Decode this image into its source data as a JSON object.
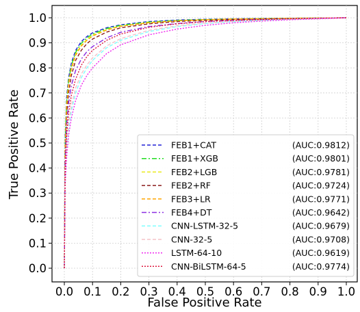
{
  "chart_data": {
    "type": "line",
    "title": "",
    "xlabel": "False Positive Rate",
    "ylabel": "True Positive Rate",
    "xlim": [
      0.0,
      1.0
    ],
    "ylim": [
      0.0,
      1.0
    ],
    "xticks": [
      "0.0",
      "0.1",
      "0.2",
      "0.3",
      "0.4",
      "0.5",
      "0.6",
      "0.7",
      "0.8",
      "0.9",
      "1.0"
    ],
    "yticks": [
      "0.0",
      "0.1",
      "0.2",
      "0.3",
      "0.4",
      "0.5",
      "0.6",
      "0.7",
      "0.8",
      "0.9",
      "1.0"
    ],
    "grid": true,
    "legend_position": "bottom-right",
    "series": [
      {
        "name": "FEB1+CAT",
        "auc": "(AUC:0.9812)",
        "color": "#1f1fd6",
        "dash": "dash",
        "points": [
          [
            0,
            0
          ],
          [
            0.003,
            0.52
          ],
          [
            0.008,
            0.68
          ],
          [
            0.015,
            0.76
          ],
          [
            0.025,
            0.82
          ],
          [
            0.04,
            0.87
          ],
          [
            0.06,
            0.905
          ],
          [
            0.08,
            0.925
          ],
          [
            0.1,
            0.94
          ],
          [
            0.15,
            0.96
          ],
          [
            0.2,
            0.972
          ],
          [
            0.3,
            0.985
          ],
          [
            0.4,
            0.991
          ],
          [
            0.5,
            0.994
          ],
          [
            0.6,
            0.996
          ],
          [
            0.7,
            0.997
          ],
          [
            0.8,
            0.998
          ],
          [
            0.9,
            0.999
          ],
          [
            1.0,
            1.0
          ]
        ]
      },
      {
        "name": "FEB1+XGB",
        "auc": "(AUC:0.9801)",
        "color": "#1edc1e",
        "dash": "dashdot",
        "points": [
          [
            0,
            0
          ],
          [
            0.003,
            0.5
          ],
          [
            0.008,
            0.66
          ],
          [
            0.015,
            0.75
          ],
          [
            0.025,
            0.81
          ],
          [
            0.04,
            0.862
          ],
          [
            0.06,
            0.898
          ],
          [
            0.08,
            0.92
          ],
          [
            0.1,
            0.935
          ],
          [
            0.15,
            0.957
          ],
          [
            0.2,
            0.97
          ],
          [
            0.3,
            0.983
          ],
          [
            0.4,
            0.99
          ],
          [
            0.5,
            0.993
          ],
          [
            0.6,
            0.995
          ],
          [
            0.7,
            0.997
          ],
          [
            0.8,
            0.998
          ],
          [
            0.9,
            0.999
          ],
          [
            1.0,
            1.0
          ]
        ]
      },
      {
        "name": "FEB2+LGB",
        "auc": "(AUC:0.9781)",
        "color": "#eaea1a",
        "dash": "dash",
        "points": [
          [
            0,
            0
          ],
          [
            0.003,
            0.49
          ],
          [
            0.008,
            0.65
          ],
          [
            0.015,
            0.74
          ],
          [
            0.025,
            0.8
          ],
          [
            0.04,
            0.855
          ],
          [
            0.06,
            0.89
          ],
          [
            0.08,
            0.913
          ],
          [
            0.1,
            0.93
          ],
          [
            0.15,
            0.953
          ],
          [
            0.2,
            0.967
          ],
          [
            0.3,
            0.981
          ],
          [
            0.4,
            0.988
          ],
          [
            0.5,
            0.992
          ],
          [
            0.6,
            0.995
          ],
          [
            0.7,
            0.996
          ],
          [
            0.8,
            0.998
          ],
          [
            0.9,
            0.999
          ],
          [
            1.0,
            1.0
          ]
        ]
      },
      {
        "name": "FEB2+RF",
        "auc": "(AUC:0.9724)",
        "color": "#8b1a1a",
        "dash": "dash",
        "points": [
          [
            0,
            0
          ],
          [
            0.003,
            0.46
          ],
          [
            0.008,
            0.61
          ],
          [
            0.015,
            0.7
          ],
          [
            0.025,
            0.77
          ],
          [
            0.04,
            0.83
          ],
          [
            0.06,
            0.87
          ],
          [
            0.08,
            0.897
          ],
          [
            0.1,
            0.915
          ],
          [
            0.15,
            0.943
          ],
          [
            0.2,
            0.96
          ],
          [
            0.3,
            0.976
          ],
          [
            0.4,
            0.985
          ],
          [
            0.5,
            0.99
          ],
          [
            0.6,
            0.993
          ],
          [
            0.7,
            0.995
          ],
          [
            0.8,
            0.997
          ],
          [
            0.9,
            0.999
          ],
          [
            1.0,
            1.0
          ]
        ]
      },
      {
        "name": "FEB3+LR",
        "auc": "(AUC:0.9771)",
        "color": "#ffa500",
        "dash": "dash",
        "points": [
          [
            0,
            0
          ],
          [
            0.003,
            0.48
          ],
          [
            0.008,
            0.64
          ],
          [
            0.015,
            0.735
          ],
          [
            0.025,
            0.795
          ],
          [
            0.04,
            0.85
          ],
          [
            0.06,
            0.887
          ],
          [
            0.08,
            0.91
          ],
          [
            0.1,
            0.927
          ],
          [
            0.15,
            0.951
          ],
          [
            0.2,
            0.966
          ],
          [
            0.3,
            0.98
          ],
          [
            0.4,
            0.988
          ],
          [
            0.5,
            0.992
          ],
          [
            0.6,
            0.995
          ],
          [
            0.7,
            0.996
          ],
          [
            0.8,
            0.998
          ],
          [
            0.9,
            0.999
          ],
          [
            1.0,
            1.0
          ]
        ]
      },
      {
        "name": "FEB4+DT",
        "auc": "(AUC:0.9642)",
        "color": "#8a2be2",
        "dash": "dashdot",
        "points": [
          [
            0,
            0
          ],
          [
            0.003,
            0.43
          ],
          [
            0.008,
            0.57
          ],
          [
            0.015,
            0.66
          ],
          [
            0.025,
            0.73
          ],
          [
            0.04,
            0.79
          ],
          [
            0.06,
            0.835
          ],
          [
            0.08,
            0.865
          ],
          [
            0.1,
            0.885
          ],
          [
            0.15,
            0.92
          ],
          [
            0.2,
            0.942
          ],
          [
            0.3,
            0.965
          ],
          [
            0.4,
            0.977
          ],
          [
            0.5,
            0.985
          ],
          [
            0.6,
            0.99
          ],
          [
            0.7,
            0.993
          ],
          [
            0.8,
            0.996
          ],
          [
            0.9,
            0.998
          ],
          [
            1.0,
            1.0
          ]
        ]
      },
      {
        "name": "CNN-LSTM-32-5",
        "auc": "(AUC:0.9679)",
        "color": "#7fffff",
        "dash": "dash",
        "points": [
          [
            0,
            0
          ],
          [
            0.003,
            0.35
          ],
          [
            0.008,
            0.47
          ],
          [
            0.015,
            0.56
          ],
          [
            0.025,
            0.63
          ],
          [
            0.04,
            0.7
          ],
          [
            0.06,
            0.76
          ],
          [
            0.08,
            0.8
          ],
          [
            0.1,
            0.83
          ],
          [
            0.15,
            0.88
          ],
          [
            0.2,
            0.91
          ],
          [
            0.3,
            0.945
          ],
          [
            0.4,
            0.965
          ],
          [
            0.5,
            0.977
          ],
          [
            0.6,
            0.985
          ],
          [
            0.7,
            0.99
          ],
          [
            0.8,
            0.994
          ],
          [
            0.9,
            0.997
          ],
          [
            1.0,
            1.0
          ]
        ]
      },
      {
        "name": "CNN-32-5",
        "auc": "(AUC:0.9708)",
        "color": "#f5c2c8",
        "dash": "dash",
        "points": [
          [
            0,
            0
          ],
          [
            0.003,
            0.37
          ],
          [
            0.008,
            0.49
          ],
          [
            0.015,
            0.58
          ],
          [
            0.025,
            0.65
          ],
          [
            0.04,
            0.72
          ],
          [
            0.06,
            0.775
          ],
          [
            0.08,
            0.812
          ],
          [
            0.1,
            0.84
          ],
          [
            0.15,
            0.888
          ],
          [
            0.2,
            0.917
          ],
          [
            0.3,
            0.95
          ],
          [
            0.4,
            0.968
          ],
          [
            0.5,
            0.979
          ],
          [
            0.6,
            0.986
          ],
          [
            0.7,
            0.991
          ],
          [
            0.8,
            0.995
          ],
          [
            0.9,
            0.998
          ],
          [
            1.0,
            1.0
          ]
        ]
      },
      {
        "name": "LSTM-64-10",
        "auc": "(AUC:0.9619)",
        "color": "#ee22ee",
        "dash": "dot",
        "points": [
          [
            0,
            0
          ],
          [
            0.003,
            0.33
          ],
          [
            0.008,
            0.44
          ],
          [
            0.015,
            0.53
          ],
          [
            0.025,
            0.6
          ],
          [
            0.04,
            0.67
          ],
          [
            0.06,
            0.73
          ],
          [
            0.08,
            0.77
          ],
          [
            0.1,
            0.8
          ],
          [
            0.15,
            0.857
          ],
          [
            0.2,
            0.892
          ],
          [
            0.3,
            0.932
          ],
          [
            0.4,
            0.955
          ],
          [
            0.5,
            0.97
          ],
          [
            0.6,
            0.98
          ],
          [
            0.7,
            0.987
          ],
          [
            0.8,
            0.992
          ],
          [
            0.9,
            0.996
          ],
          [
            1.0,
            1.0
          ]
        ]
      },
      {
        "name": "CNN-BiLSTM-64-5",
        "auc": "(AUC:0.9774)",
        "color": "#dc143c",
        "dash": "dot",
        "points": [
          [
            0,
            0
          ],
          [
            0.003,
            0.4
          ],
          [
            0.008,
            0.53
          ],
          [
            0.015,
            0.62
          ],
          [
            0.025,
            0.69
          ],
          [
            0.04,
            0.755
          ],
          [
            0.06,
            0.81
          ],
          [
            0.08,
            0.845
          ],
          [
            0.1,
            0.87
          ],
          [
            0.15,
            0.91
          ],
          [
            0.2,
            0.935
          ],
          [
            0.3,
            0.962
          ],
          [
            0.4,
            0.976
          ],
          [
            0.5,
            0.985
          ],
          [
            0.6,
            0.99
          ],
          [
            0.7,
            0.993
          ],
          [
            0.8,
            0.996
          ],
          [
            0.9,
            0.998
          ],
          [
            1.0,
            1.0
          ]
        ]
      }
    ]
  }
}
